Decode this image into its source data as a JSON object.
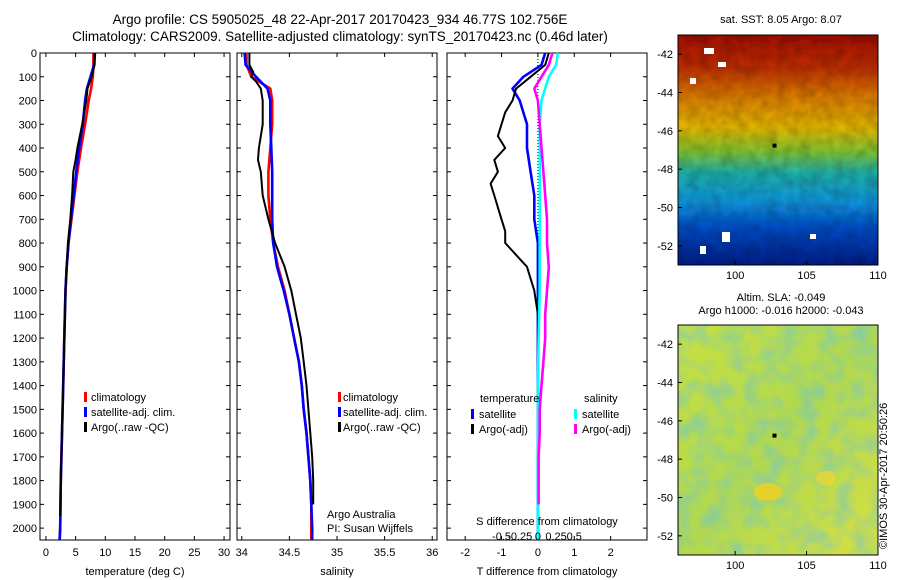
{
  "header": {
    "title_line1": "Argo profile: CS 5905025_48 22-Apr-2017 20170423_934 46.77S 102.756E",
    "title_line2": "Climatology: CARS2009. Satellite-adjusted climatology: synTS_20170423.nc (0.46d later)"
  },
  "colors": {
    "climatology": "#ff0000",
    "satellite_clim": "#0000ff",
    "argo": "#000000",
    "sat_salinity": "#00ffff",
    "argo_salinity": "#ff00ff"
  },
  "panel_ticks": {
    "depth": [
      "0",
      "100",
      "200",
      "300",
      "400",
      "500",
      "600",
      "700",
      "800",
      "900",
      "1000",
      "1100",
      "1200",
      "1300",
      "1400",
      "1500",
      "1600",
      "1700",
      "1800",
      "1900",
      "2000"
    ],
    "temperature": [
      "0",
      "5",
      "10",
      "15",
      "20",
      "25",
      "30"
    ],
    "salinity": [
      "34",
      "34.5",
      "35",
      "35.5",
      "36"
    ],
    "tdiff": [
      "-2",
      "-1",
      "0",
      "1",
      "2"
    ],
    "sdiff": [
      "-0.5",
      "-0.25",
      "0",
      "0.25",
      "0.5"
    ],
    "map_lat": [
      "-42",
      "-44",
      "-46",
      "-48",
      "-50",
      "-52"
    ],
    "map_lon": [
      "100",
      "105",
      "110"
    ]
  },
  "legend1": {
    "climatology": "climatology",
    "satellite": "satellite-adj. clim.",
    "argo": "Argo(..raw -QC)"
  },
  "legend3": {
    "temp_head": "temperature",
    "sal_head": "salinity",
    "t_sat": "satellite",
    "t_argo": "Argo(-adj)",
    "s_sat": "satellite",
    "s_argo": "Argo(-adj)"
  },
  "annot": {
    "argo_australia": "Argo Australia",
    "pi": "PI: Susan Wijffels",
    "sdiff_label": "S difference from climatology"
  },
  "axis_labels": {
    "temperature": "temperature (deg C)",
    "salinity": "salinity",
    "tdiff": "T difference from climatology"
  },
  "maps": {
    "sst_title": "sat. SST: 8.05  Argo: 8.07",
    "sla_title1": "Altim. SLA: -0.049",
    "sla_title2": "Argo h1000: -0.016  h2000: -0.043"
  },
  "credit": "©IMOS 30-Apr-2017 20:50:26",
  "chart_data": [
    {
      "type": "line",
      "name": "temperature-profile",
      "xlabel": "temperature (deg C)",
      "ylabel": "",
      "xlim": [
        -1,
        31
      ],
      "ylim": [
        2050,
        0
      ],
      "series": [
        {
          "name": "climatology",
          "color": "#ff0000",
          "points": [
            [
              8.0,
              0
            ],
            [
              8.0,
              50
            ],
            [
              7.9,
              100
            ],
            [
              7.6,
              150
            ],
            [
              7.2,
              200
            ],
            [
              6.6,
              300
            ],
            [
              5.9,
              400
            ],
            [
              5.3,
              500
            ],
            [
              4.8,
              600
            ],
            [
              4.3,
              700
            ],
            [
              3.8,
              800
            ],
            [
              3.5,
              900
            ],
            [
              3.3,
              1000
            ],
            [
              3.1,
              1200
            ],
            [
              2.9,
              1400
            ],
            [
              2.7,
              1600
            ],
            [
              2.5,
              1800
            ],
            [
              2.4,
              2000
            ],
            [
              2.3,
              2050
            ]
          ]
        },
        {
          "name": "satellite-adj. clim.",
          "color": "#0000ff",
          "points": [
            [
              8.2,
              0
            ],
            [
              8.1,
              50
            ],
            [
              7.5,
              100
            ],
            [
              6.9,
              150
            ],
            [
              6.6,
              200
            ],
            [
              6.2,
              300
            ],
            [
              5.6,
              400
            ],
            [
              5.1,
              500
            ],
            [
              4.7,
              600
            ],
            [
              4.2,
              700
            ],
            [
              3.8,
              800
            ],
            [
              3.5,
              900
            ],
            [
              3.3,
              1000
            ],
            [
              3.1,
              1200
            ],
            [
              2.9,
              1400
            ],
            [
              2.7,
              1600
            ],
            [
              2.5,
              1800
            ],
            [
              2.4,
              2000
            ],
            [
              2.3,
              2050
            ]
          ]
        },
        {
          "name": "Argo(..raw -QC)",
          "color": "#000000",
          "points": [
            [
              8.3,
              0
            ],
            [
              8.2,
              50
            ],
            [
              7.7,
              100
            ],
            [
              7.0,
              150
            ],
            [
              6.8,
              200
            ],
            [
              6.1,
              300
            ],
            [
              5.3,
              400
            ],
            [
              5.0,
              450
            ],
            [
              4.6,
              500
            ],
            [
              4.4,
              600
            ],
            [
              4.1,
              700
            ],
            [
              3.7,
              800
            ],
            [
              3.5,
              900
            ],
            [
              3.3,
              1000
            ],
            [
              3.1,
              1200
            ],
            [
              2.9,
              1400
            ],
            [
              2.7,
              1600
            ],
            [
              2.5,
              1800
            ],
            [
              2.4,
              1950
            ]
          ]
        }
      ]
    },
    {
      "type": "line",
      "name": "salinity-profile",
      "xlabel": "salinity",
      "ylabel": "",
      "xlim": [
        33.95,
        36.05
      ],
      "ylim": [
        2050,
        0
      ],
      "series": [
        {
          "name": "climatology",
          "color": "#ff0000",
          "points": [
            [
              34.05,
              0
            ],
            [
              34.05,
              50
            ],
            [
              34.1,
              100
            ],
            [
              34.3,
              150
            ],
            [
              34.32,
              200
            ],
            [
              34.32,
              300
            ],
            [
              34.3,
              400
            ],
            [
              34.28,
              500
            ],
            [
              34.28,
              600
            ],
            [
              34.3,
              700
            ],
            [
              34.33,
              800
            ],
            [
              34.38,
              900
            ],
            [
              34.45,
              1000
            ],
            [
              34.5,
              1100
            ],
            [
              34.55,
              1200
            ],
            [
              34.6,
              1300
            ],
            [
              34.63,
              1400
            ],
            [
              34.65,
              1500
            ],
            [
              34.68,
              1600
            ],
            [
              34.7,
              1700
            ],
            [
              34.72,
              1800
            ],
            [
              34.73,
              1900
            ],
            [
              34.73,
              2000
            ],
            [
              34.73,
              2050
            ]
          ]
        },
        {
          "name": "satellite-adj. clim.",
          "color": "#0000ff",
          "points": [
            [
              34.03,
              0
            ],
            [
              34.04,
              50
            ],
            [
              34.15,
              100
            ],
            [
              34.27,
              150
            ],
            [
              34.3,
              200
            ],
            [
              34.3,
              300
            ],
            [
              34.31,
              400
            ],
            [
              34.32,
              500
            ],
            [
              34.32,
              600
            ],
            [
              34.32,
              700
            ],
            [
              34.33,
              800
            ],
            [
              34.37,
              900
            ],
            [
              34.44,
              1000
            ],
            [
              34.5,
              1100
            ],
            [
              34.55,
              1200
            ],
            [
              34.6,
              1300
            ],
            [
              34.63,
              1400
            ],
            [
              34.65,
              1500
            ],
            [
              34.68,
              1600
            ],
            [
              34.7,
              1700
            ],
            [
              34.72,
              1800
            ],
            [
              34.73,
              1900
            ],
            [
              34.74,
              2000
            ],
            [
              34.74,
              2050
            ]
          ]
        },
        {
          "name": "Argo(..raw -QC)",
          "color": "#000000",
          "points": [
            [
              34.08,
              0
            ],
            [
              34.08,
              50
            ],
            [
              34.12,
              80
            ],
            [
              34.1,
              100
            ],
            [
              34.15,
              120
            ],
            [
              34.2,
              150
            ],
            [
              34.22,
              200
            ],
            [
              34.22,
              300
            ],
            [
              34.18,
              400
            ],
            [
              34.17,
              450
            ],
            [
              34.2,
              500
            ],
            [
              34.22,
              600
            ],
            [
              34.28,
              700
            ],
            [
              34.35,
              800
            ],
            [
              34.45,
              900
            ],
            [
              34.52,
              1000
            ],
            [
              34.57,
              1100
            ],
            [
              34.62,
              1200
            ],
            [
              34.65,
              1300
            ],
            [
              34.68,
              1400
            ],
            [
              34.7,
              1500
            ],
            [
              34.72,
              1600
            ],
            [
              34.74,
              1700
            ],
            [
              34.75,
              1800
            ],
            [
              34.75,
              1900
            ]
          ]
        }
      ]
    },
    {
      "type": "line",
      "name": "difference-profile",
      "xlabel": "T difference from climatology",
      "ylabel": "",
      "xlim": [
        -2.5,
        3
      ],
      "ylim": [
        2050,
        0
      ],
      "series": [
        {
          "name": "satellite",
          "color": "#0000ff",
          "points": [
            [
              0.2,
              0
            ],
            [
              0.1,
              50
            ],
            [
              -0.4,
              100
            ],
            [
              -0.7,
              150
            ],
            [
              -0.5,
              200
            ],
            [
              -0.3,
              300
            ],
            [
              -0.3,
              400
            ],
            [
              -0.2,
              500
            ],
            [
              -0.1,
              600
            ],
            [
              -0.1,
              700
            ],
            [
              0,
              800
            ],
            [
              0,
              900
            ],
            [
              0,
              1000
            ],
            [
              0,
              1200
            ],
            [
              0,
              1500
            ],
            [
              0,
              1800
            ],
            [
              0,
              2000
            ],
            [
              0,
              2050
            ]
          ]
        },
        {
          "name": "Argo(-adj)",
          "color": "#000000",
          "points": [
            [
              0.3,
              0
            ],
            [
              0.2,
              50
            ],
            [
              -0.2,
              100
            ],
            [
              -0.6,
              150
            ],
            [
              -0.7,
              200
            ],
            [
              -0.9,
              250
            ],
            [
              -1.0,
              300
            ],
            [
              -1.1,
              350
            ],
            [
              -0.9,
              400
            ],
            [
              -1.2,
              450
            ],
            [
              -1.1,
              500
            ],
            [
              -1.3,
              550
            ],
            [
              -1.2,
              600
            ],
            [
              -1.1,
              650
            ],
            [
              -1.0,
              700
            ],
            [
              -0.9,
              750
            ],
            [
              -0.9,
              800
            ],
            [
              -0.6,
              850
            ],
            [
              -0.3,
              900
            ],
            [
              -0.2,
              950
            ],
            [
              -0.1,
              1000
            ],
            [
              0,
              1100
            ],
            [
              0,
              1200
            ],
            [
              0,
              1400
            ],
            [
              0,
              1600
            ],
            [
              0,
              1800
            ],
            [
              0,
              1950
            ]
          ]
        },
        {
          "name": "satellite (salinity)",
          "color": "#00ffff",
          "points": [
            [
              0.55,
              0
            ],
            [
              0.5,
              50
            ],
            [
              0.3,
              100
            ],
            [
              0.1,
              200
            ],
            [
              0.05,
              300
            ],
            [
              0.05,
              400
            ],
            [
              0.05,
              600
            ],
            [
              0.05,
              800
            ],
            [
              0.05,
              1000
            ],
            [
              0.02,
              1200
            ],
            [
              0,
              1400
            ],
            [
              0,
              1600
            ],
            [
              0,
              1800
            ],
            [
              0,
              2000
            ],
            [
              0,
              2050
            ]
          ]
        },
        {
          "name": "Argo(-adj) (salinity)",
          "color": "#ff00ff",
          "points": [
            [
              0.4,
              0
            ],
            [
              0.3,
              50
            ],
            [
              0.1,
              100
            ],
            [
              -0.1,
              150
            ],
            [
              0.0,
              200
            ],
            [
              0.05,
              300
            ],
            [
              0.1,
              400
            ],
            [
              0.15,
              500
            ],
            [
              0.2,
              600
            ],
            [
              0.25,
              700
            ],
            [
              0.25,
              800
            ],
            [
              0.3,
              900
            ],
            [
              0.25,
              1000
            ],
            [
              0.2,
              1100
            ],
            [
              0.2,
              1200
            ],
            [
              0.15,
              1300
            ],
            [
              0.1,
              1400
            ],
            [
              0.05,
              1500
            ],
            [
              0.05,
              1600
            ],
            [
              0.02,
              1700
            ],
            [
              0.02,
              1800
            ],
            [
              0.02,
              1900
            ]
          ]
        }
      ]
    },
    {
      "type": "heatmap",
      "name": "satellite-sst-map",
      "title": "sat. SST: 8.05  Argo: 8.07",
      "xlim": [
        96,
        110
      ],
      "ylim": [
        -53,
        -41
      ]
    },
    {
      "type": "heatmap",
      "name": "altimeter-sla-map",
      "title": "Altim. SLA: -0.049",
      "xlim": [
        96,
        110
      ],
      "ylim": [
        -53,
        -41
      ]
    }
  ]
}
